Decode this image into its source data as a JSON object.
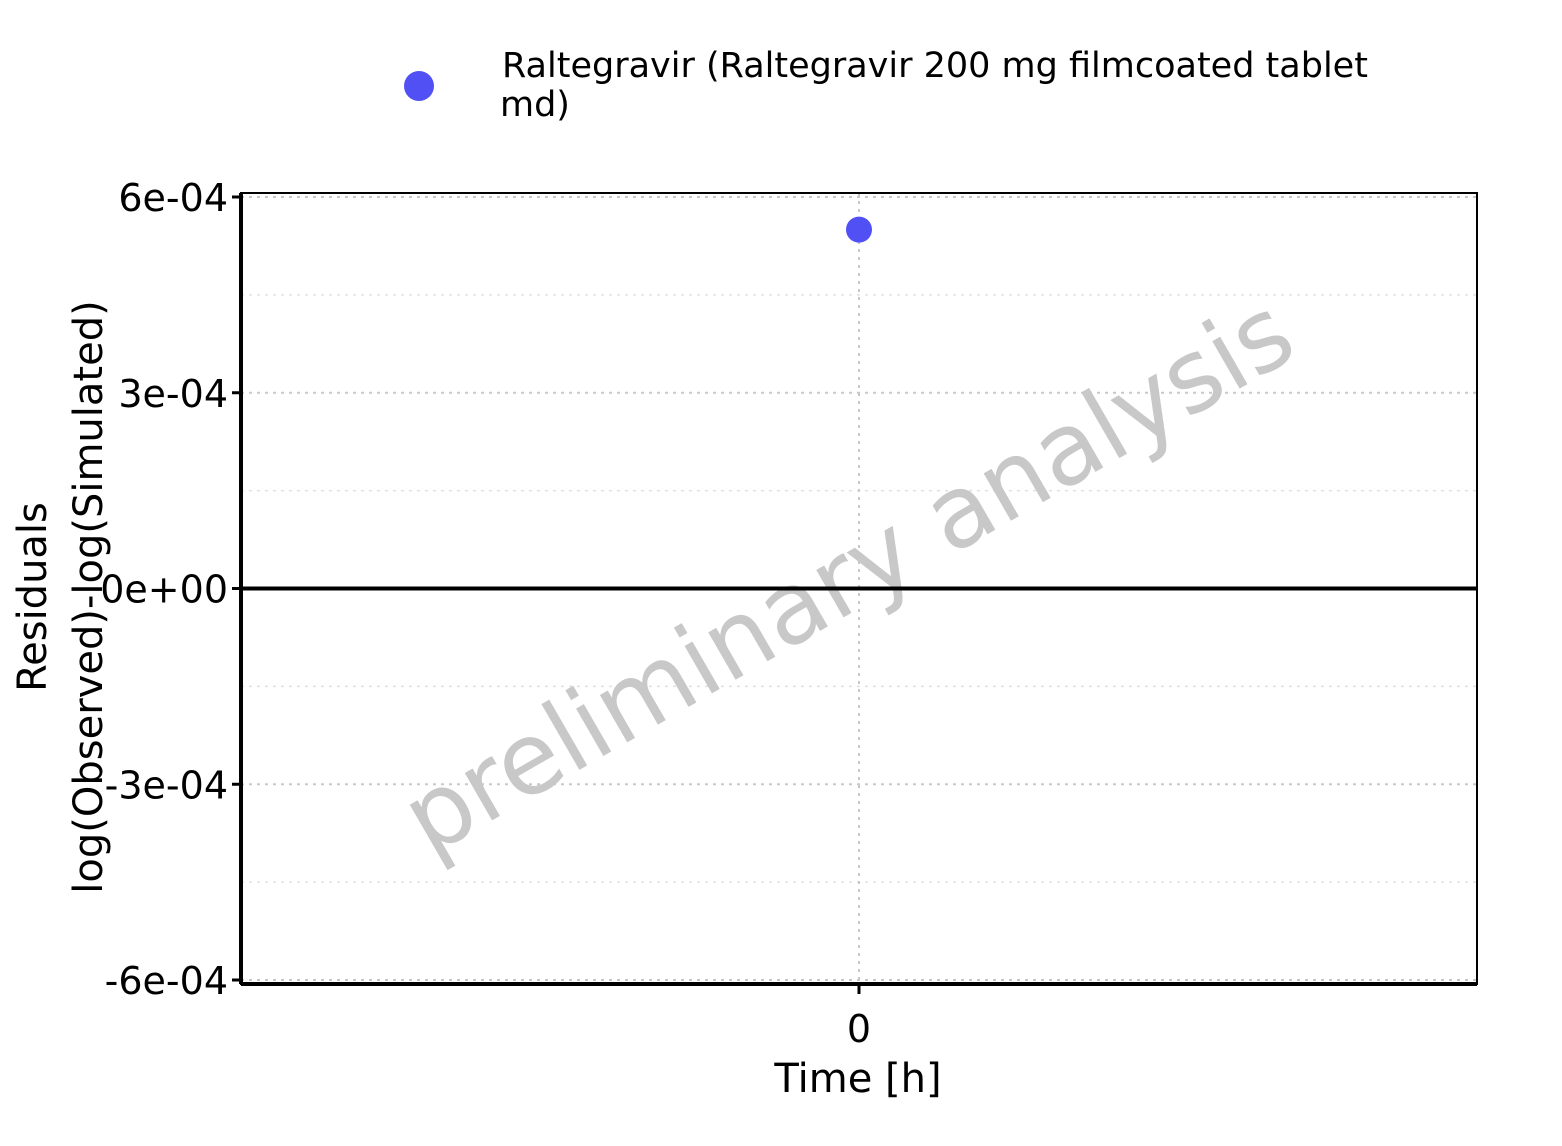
{
  "chart_data": {
    "type": "scatter",
    "xlabel": "Time [h]",
    "ylabel_lines": [
      "Residuals",
      "log(Observed)-log(Simulated)"
    ],
    "watermark": "preliminary analysis",
    "x_ticks": [
      "0"
    ],
    "y_ticks": [
      "6e-04",
      "3e-04",
      "0e+00",
      "-3e-04",
      "-6e-04"
    ],
    "ylim": [
      -0.0006,
      0.0006
    ],
    "xlim": [
      -1,
      1
    ],
    "grid": true,
    "zero_line": true,
    "legend_position": "top",
    "series": [
      {
        "name": "Raltegravir (Raltegravir 200 mg filmcoated tablet md)",
        "legend_lines": [
          "Raltegravir (Raltegravir 200 mg filmcoated tablet",
          "md)"
        ],
        "color": "#5050f5",
        "points": [
          {
            "x": 0,
            "y": 0.00055
          }
        ]
      }
    ]
  }
}
